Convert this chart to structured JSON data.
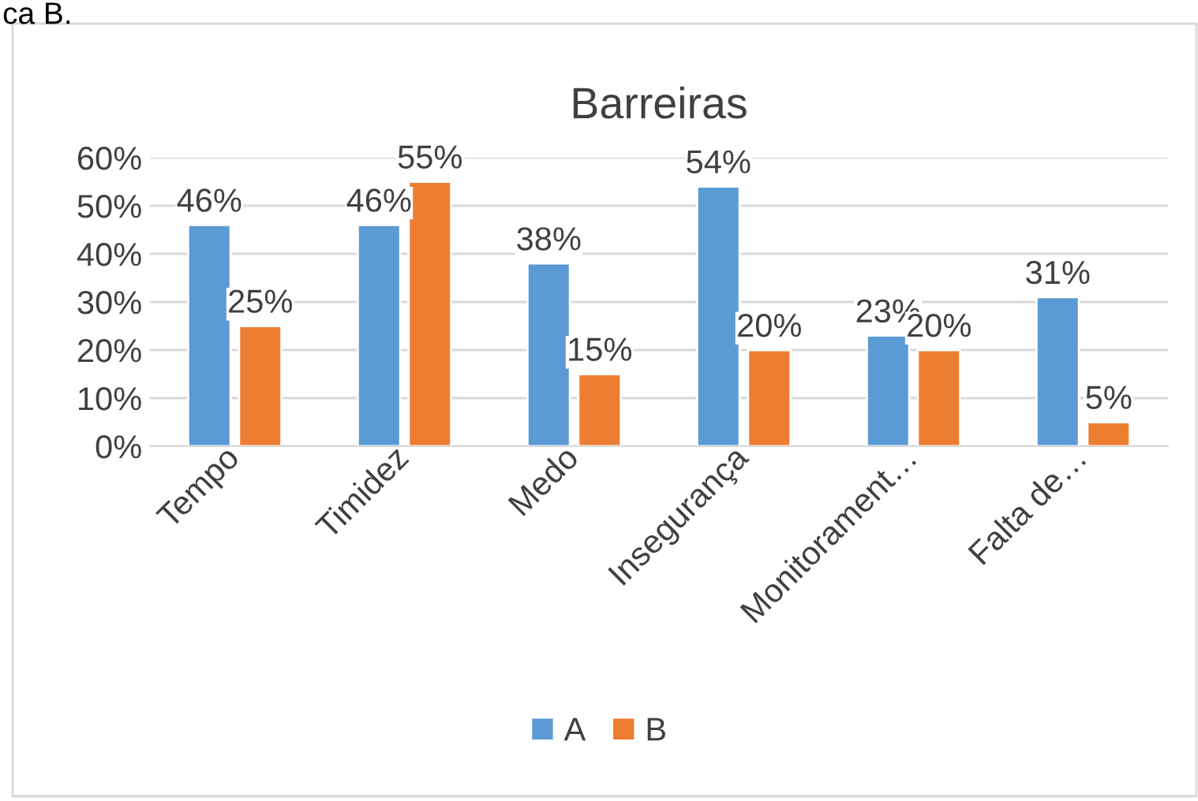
{
  "chart_data": {
    "type": "bar",
    "title": "Barreiras",
    "annotations": [
      "ca B."
    ],
    "categories": [
      "Tempo",
      "Timidez",
      "Medo",
      "Insegurança",
      "Monitorament…",
      "Falta de…"
    ],
    "series": [
      {
        "name": "A",
        "color": "#5b9bd5",
        "values": [
          46,
          46,
          38,
          54,
          23,
          31
        ],
        "value_labels": [
          "46%",
          "46%",
          "38%",
          "54%",
          "23%",
          "31%"
        ]
      },
      {
        "name": "B",
        "color": "#ed7d31",
        "values": [
          25,
          55,
          15,
          20,
          20,
          5
        ],
        "value_labels": [
          "25%",
          "55%",
          "15%",
          "20%",
          "20%",
          "5%"
        ]
      }
    ],
    "ylim": [
      0,
      60
    ],
    "yticks": [
      {
        "value": 0,
        "label": "0%"
      },
      {
        "value": 10,
        "label": "10%"
      },
      {
        "value": 20,
        "label": "20%"
      },
      {
        "value": 30,
        "label": "30%"
      },
      {
        "value": 40,
        "label": "40%"
      },
      {
        "value": 50,
        "label": "50%"
      },
      {
        "value": 60,
        "label": "60%"
      }
    ],
    "grid": "y",
    "legend": "bottom"
  }
}
